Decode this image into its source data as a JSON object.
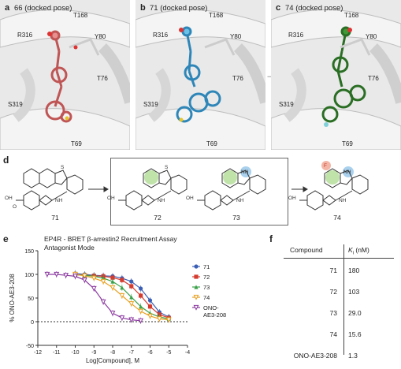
{
  "panels": [
    {
      "letter": "a",
      "title": "66 (docked pose)",
      "ligand_color": "#e88f8f",
      "residues": [
        "T168",
        "R316",
        "Y80",
        "T76",
        "S319",
        "T69"
      ]
    },
    {
      "letter": "b",
      "title": "71 (docked pose)",
      "ligand_color": "#6cc1e8",
      "residues": [
        "T168",
        "R316",
        "Y80",
        "T76",
        "S319",
        "T69"
      ]
    },
    {
      "letter": "c",
      "title": "74 (docked pose)",
      "ligand_color": "#3f9a36",
      "residues": [
        "T168",
        "R316",
        "Y80",
        "T76",
        "S319",
        "T69"
      ]
    }
  ],
  "section_d": {
    "letter": "d",
    "compounds": [
      {
        "label": "71"
      },
      {
        "label": "72"
      },
      {
        "label": "73"
      },
      {
        "label": "74"
      }
    ],
    "hetero_atoms": {
      "sulfur": "S",
      "nitrogen": "N",
      "nh": "NH",
      "oh": "OH",
      "oxygen": "O",
      "fluorine": "F"
    }
  },
  "section_e": {
    "letter": "e"
  },
  "section_f": {
    "letter": "f"
  },
  "chart_data": {
    "type": "line",
    "title": "EP4R - BRET β-arrestin2 Recruitment Assay",
    "subtitle": "Antagonist Mode",
    "xlabel": "Log[Compound], M",
    "ylabel": "% ONO-AE3-208",
    "xlim": [
      -12,
      -4
    ],
    "ylim": [
      -50,
      150
    ],
    "xticks": [
      -12,
      -11,
      -10,
      -9,
      -8,
      -7,
      -6,
      -5,
      -4
    ],
    "yticks": [
      -50,
      0,
      50,
      100,
      150
    ],
    "legend_position": "right",
    "series": [
      {
        "name": "71",
        "color": "#3b5fb5",
        "marker": "circle",
        "x": [
          -10,
          -9.5,
          -9,
          -8.5,
          -8,
          -7.5,
          -7,
          -6.5,
          -6,
          -5.5,
          -5
        ],
        "y": [
          102,
          100,
          98,
          97,
          96,
          92,
          85,
          70,
          45,
          20,
          10
        ]
      },
      {
        "name": "72",
        "color": "#d43c2f",
        "marker": "square",
        "x": [
          -10,
          -9.5,
          -9,
          -8.5,
          -8,
          -7.5,
          -7,
          -6.5,
          -6,
          -5.5,
          -5
        ],
        "y": [
          100,
          98,
          97,
          96,
          93,
          88,
          75,
          55,
          32,
          15,
          8
        ]
      },
      {
        "name": "73",
        "color": "#3aa14a",
        "marker": "triangle",
        "x": [
          -10,
          -9.5,
          -9,
          -8.5,
          -8,
          -7.5,
          -7,
          -6.5,
          -6,
          -5.5,
          -5
        ],
        "y": [
          99,
          98,
          96,
          92,
          85,
          72,
          52,
          32,
          18,
          10,
          6
        ]
      },
      {
        "name": "74",
        "color": "#e8a020",
        "marker": "triangle-down",
        "x": [
          -10,
          -9.5,
          -9,
          -8.5,
          -8,
          -7.5,
          -7,
          -6.5,
          -6,
          -5.5,
          -5
        ],
        "y": [
          100,
          97,
          92,
          85,
          72,
          55,
          38,
          22,
          12,
          6,
          4
        ]
      },
      {
        "name": "ONO-AE3-208",
        "color": "#8b3aa0",
        "marker": "triangle-down",
        "x": [
          -11.5,
          -11,
          -10.5,
          -10,
          -9.5,
          -9,
          -8.5,
          -8,
          -7.5,
          -7,
          -6.5
        ],
        "y": [
          100,
          100,
          98,
          96,
          88,
          70,
          42,
          18,
          8,
          4,
          2
        ]
      }
    ]
  },
  "ki_table": {
    "headers": [
      "Compound",
      "Ki (nM)"
    ],
    "header_main": "K",
    "header_sub": "i",
    "header_unit": " (nM)",
    "rows": [
      [
        "71",
        "180"
      ],
      [
        "72",
        "103"
      ],
      [
        "73",
        "29.0"
      ],
      [
        "74",
        "15.6"
      ],
      [
        "ONO-AE3-208",
        "1.3"
      ]
    ]
  }
}
